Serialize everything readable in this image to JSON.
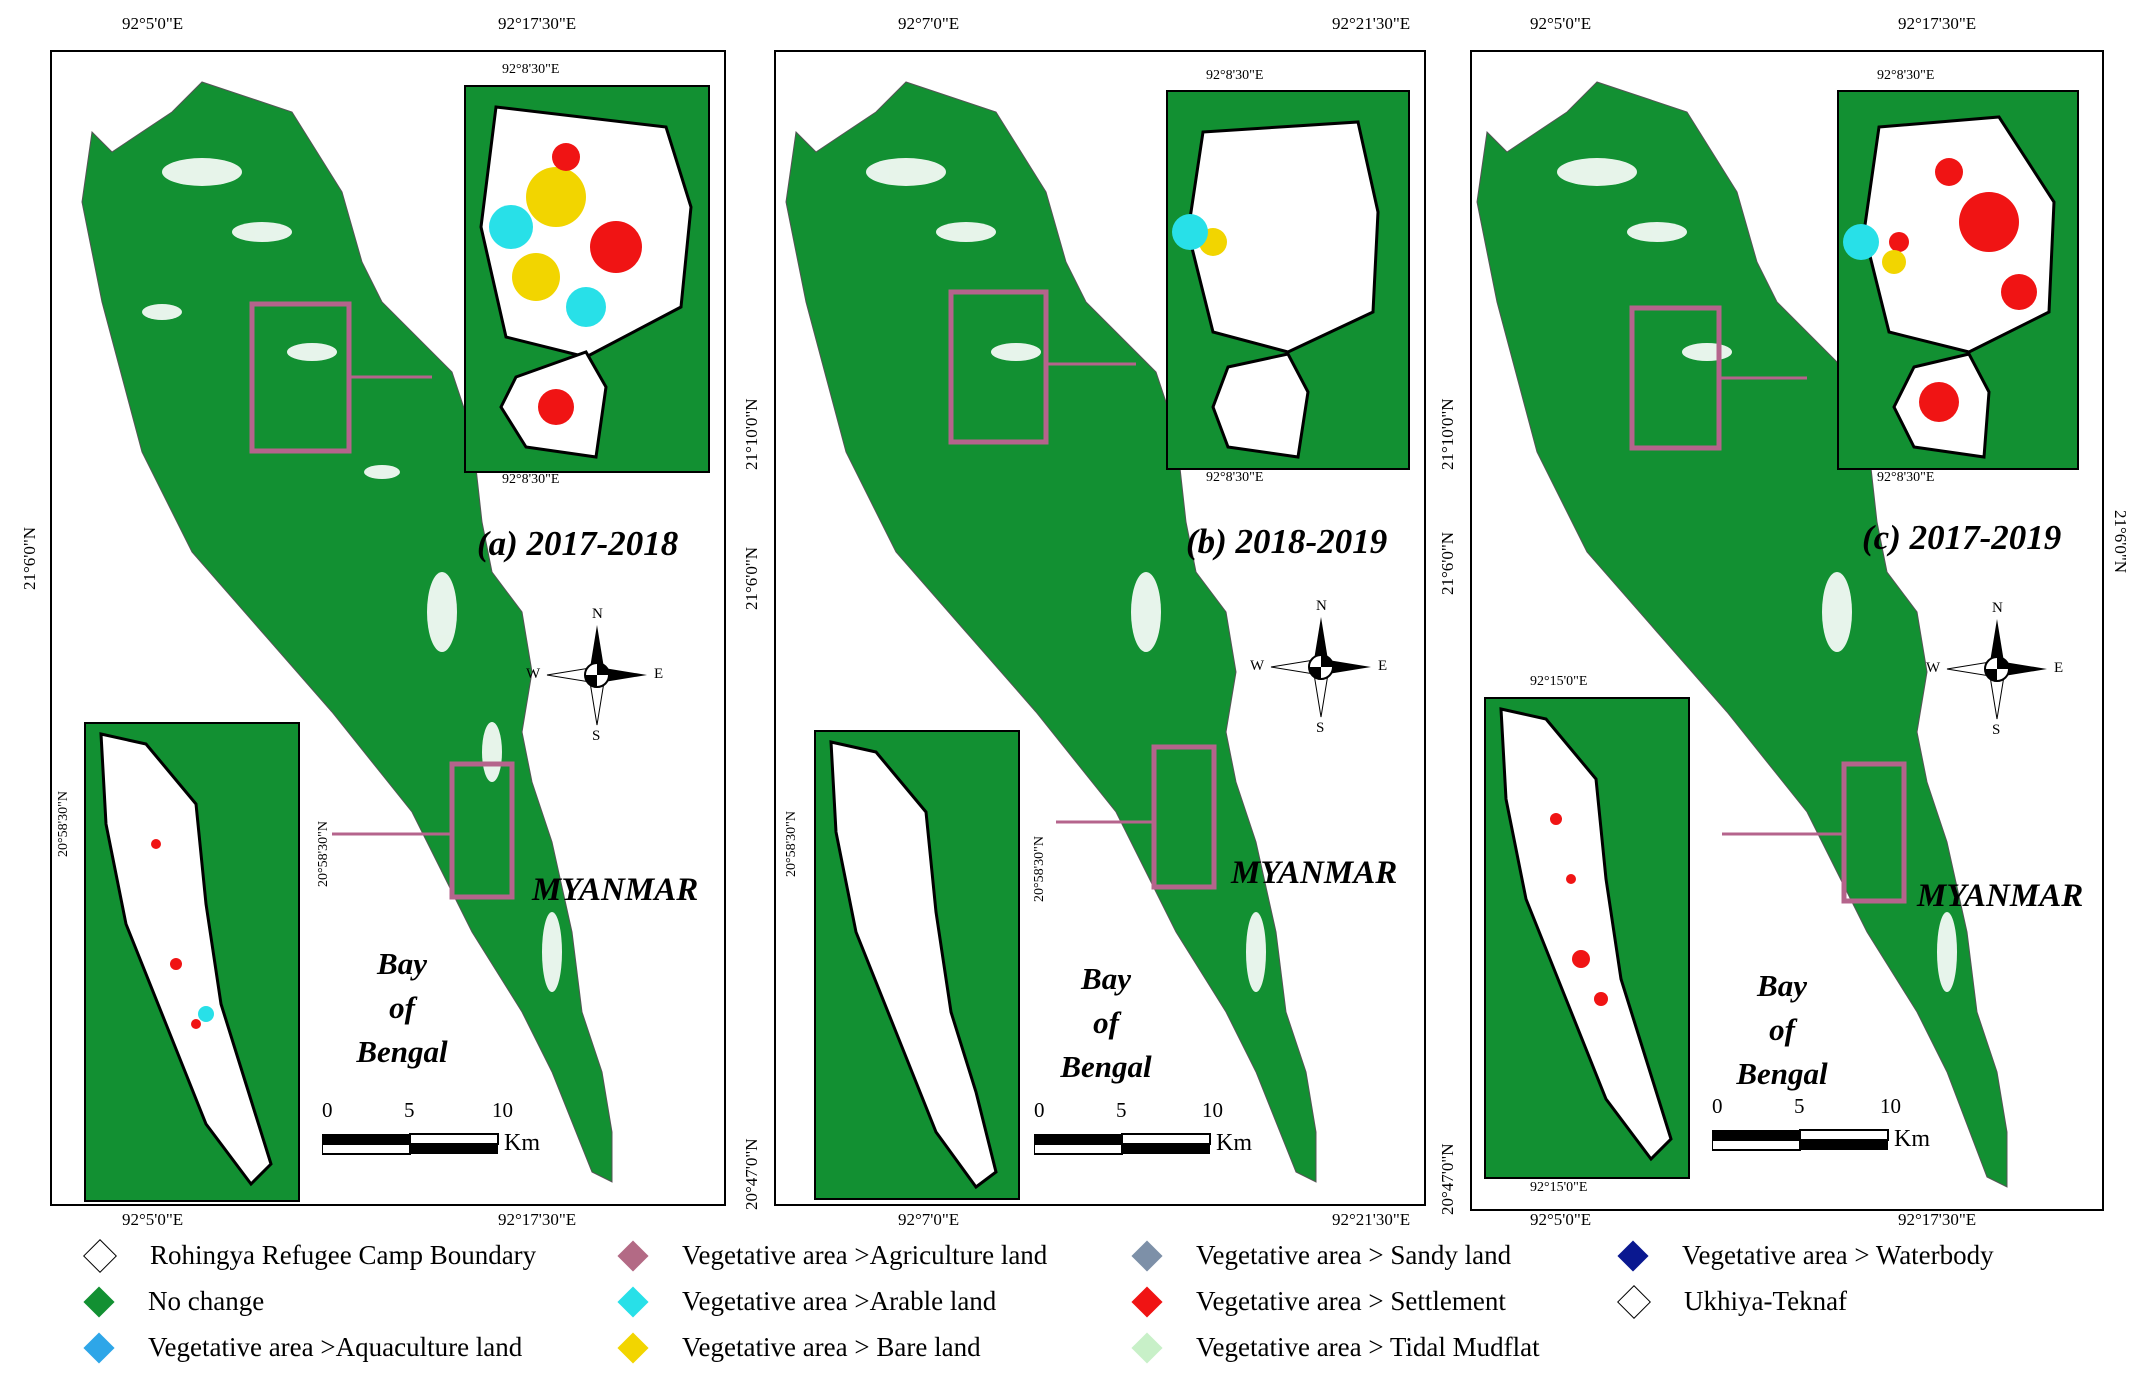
{
  "colors": {
    "no_change": "#129032",
    "agriculture": "#b36a85",
    "arable": "#28e0e8",
    "aquaculture": "#2ea6e8",
    "bare": "#f2d500",
    "sandy": "#7d90a8",
    "settlement": "#f01414",
    "tidal": "#c8f0c8",
    "waterbody": "#0a1890",
    "zoom_box": "#b5648c"
  },
  "panels": [
    {
      "title": "(a) 2017-2018",
      "top_left_lon": "92°5'0\"E",
      "top_right_lon": "92°17'30\"E",
      "bottom_left_lon": "92°5'0\"E",
      "bottom_right_lon": "92°17'30\"E",
      "left_lat": "21°6'0\"N",
      "right_lat_top": "",
      "right_lat_mid": "",
      "inset_top_lon": "92°8'30\"E",
      "inset_bottom_lon": "92°8'30\"E",
      "south_inset_lat": "20°58'30\"N",
      "south_inset_lat2": "20°58'30\"N",
      "myanmar": "MYANMAR",
      "bay": [
        "Bay",
        "of",
        "Bengal"
      ],
      "scale": [
        "0",
        "5",
        "10"
      ],
      "scale_unit": "Km"
    },
    {
      "title": "(b) 2018-2019",
      "top_left_lon": "92°7'0\"E",
      "top_right_lon": "92°21'30\"E",
      "bottom_left_lon": "92°7'0\"E",
      "bottom_right_lon": "92°21'30\"E",
      "left_lat_top": "21°10'0\"N",
      "left_lat": "21°6'0\"N",
      "left_lat_bottom": "20°47'0\"N",
      "inset_top_lon": "92°8'30\"E",
      "inset_bottom_lon": "92°8'30\"E",
      "south_inset_lat": "20°58'30\"N",
      "south_inset_lat2": "20°58'30\"N",
      "myanmar": "MYANMAR",
      "bay": [
        "Bay",
        "of",
        "Bengal"
      ],
      "scale": [
        "0",
        "5",
        "10"
      ],
      "scale_unit": "Km"
    },
    {
      "title": "(c) 2017-2019",
      "top_left_lon": "92°5'0\"E",
      "top_right_lon": "92°17'30\"E",
      "bottom_left_lon": "92°5'0\"E",
      "bottom_right_lon": "92°17'30\"E",
      "left_lat_top": "21°10'0\"N",
      "left_lat": "21°6'0\"N",
      "left_lat_bottom": "20°47'0\"N",
      "right_lat": "21°6'0\"N",
      "inset_top_lon": "92°8'30\"E",
      "inset_bottom_lon": "92°8'30\"E",
      "south_inset_top_lon": "92°15'0\"E",
      "south_inset_bottom_lon": "92°15'0\"E",
      "myanmar": "MYANMAR",
      "bay": [
        "Bay",
        "of",
        "Bengal"
      ],
      "scale": [
        "0",
        "5",
        "10"
      ],
      "scale_unit": "Km"
    }
  ],
  "compass": {
    "n": "N",
    "s": "S",
    "e": "E",
    "w": "W"
  },
  "legend": [
    {
      "label": "Rohingya Refugee Camp Boundary",
      "color": "#ffffff"
    },
    {
      "label": "Vegetative area >Agriculture land",
      "color": "#b36a85"
    },
    {
      "label": "Vegetative area > Sandy land",
      "color": "#7d90a8"
    },
    {
      "label": "Vegetative area > Waterbody",
      "color": "#0a1890"
    },
    {
      "label": "No change",
      "color": "#129032"
    },
    {
      "label": "Vegetative area >Arable land",
      "color": "#28e0e8"
    },
    {
      "label": "Vegetative area > Settlement",
      "color": "#f01414"
    },
    {
      "label": "Ukhiya-Teknaf",
      "color": "#ffffff"
    },
    {
      "label": "Vegetative area >Aquaculture land",
      "color": "#2ea6e8"
    },
    {
      "label": "Vegetative area > Bare land",
      "color": "#f2d500"
    },
    {
      "label": "Vegetative area > Tidal Mudflat",
      "color": "#c8f0c8"
    }
  ]
}
